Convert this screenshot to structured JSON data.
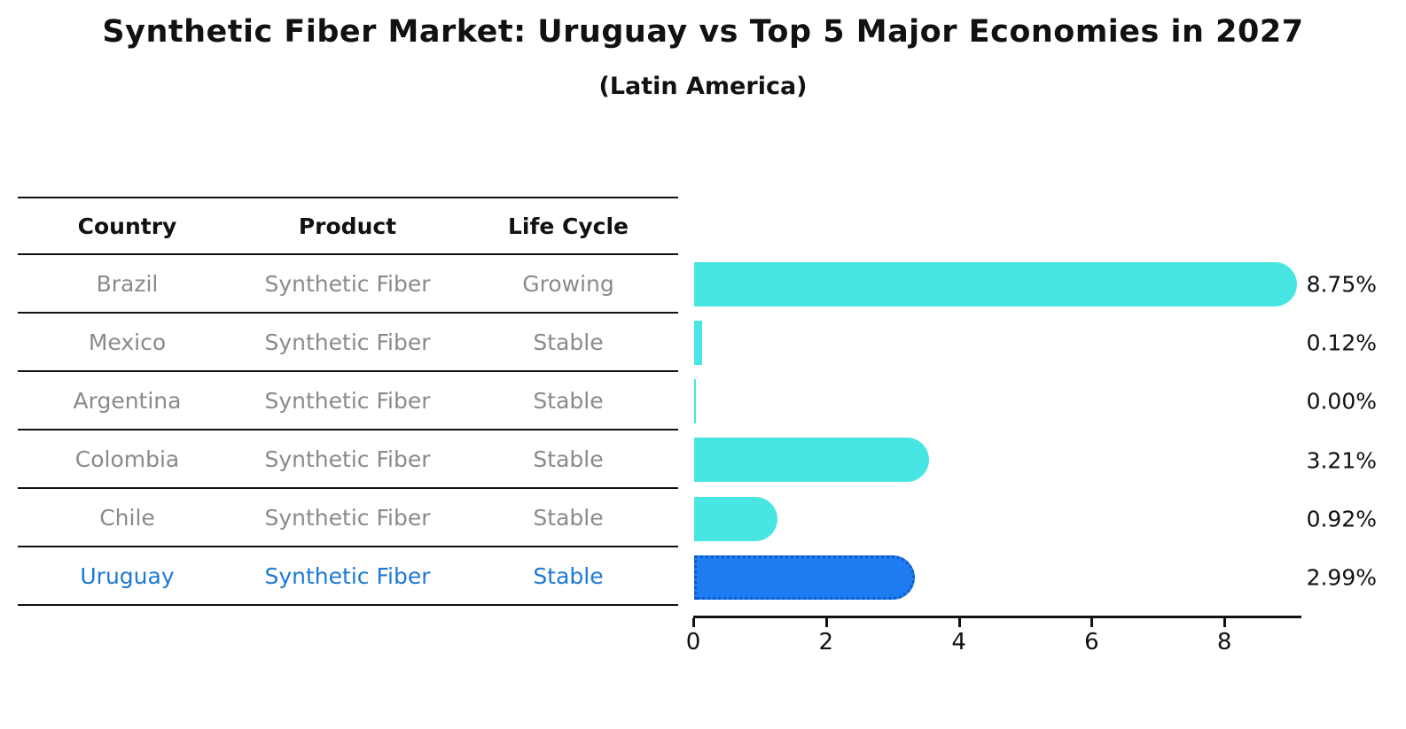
{
  "title": "Synthetic Fiber Market: Uruguay vs Top 5 Major Economies in 2027",
  "subtitle": "(Latin America)",
  "table": {
    "headers": {
      "country": "Country",
      "product": "Product",
      "life_cycle": "Life Cycle"
    },
    "rows": [
      {
        "country": "Brazil",
        "product": "Synthetic Fiber",
        "life_cycle": "Growing"
      },
      {
        "country": "Mexico",
        "product": "Synthetic Fiber",
        "life_cycle": "Stable"
      },
      {
        "country": "Argentina",
        "product": "Synthetic Fiber",
        "life_cycle": "Stable"
      },
      {
        "country": "Colombia",
        "product": "Synthetic Fiber",
        "life_cycle": "Stable"
      },
      {
        "country": "Chile",
        "product": "Synthetic Fiber",
        "life_cycle": "Stable"
      },
      {
        "country": "Uruguay",
        "product": "Synthetic Fiber",
        "life_cycle": "Stable"
      }
    ]
  },
  "chart_data": {
    "type": "bar",
    "orientation": "horizontal",
    "categories": [
      "Brazil",
      "Mexico",
      "Argentina",
      "Colombia",
      "Chile",
      "Uruguay"
    ],
    "values": [
      8.75,
      0.12,
      0.0,
      3.21,
      0.92,
      2.99
    ],
    "value_labels": [
      "8.75%",
      "0.12%",
      "0.00%",
      "3.21%",
      "0.92%",
      "2.99%"
    ],
    "xticks": [
      0,
      2,
      4,
      6,
      8
    ],
    "xlim": [
      0,
      9.19
    ],
    "grid": false,
    "legend": "none",
    "highlight_index": 5,
    "colors": {
      "bar": "#47e6e2",
      "highlight_bar": "#1e7cf2",
      "highlight_bar_border": "#0f5bc8",
      "highlight_text": "#1c79d4",
      "table_text": "#8a8a8a",
      "ink": "#111111"
    }
  }
}
